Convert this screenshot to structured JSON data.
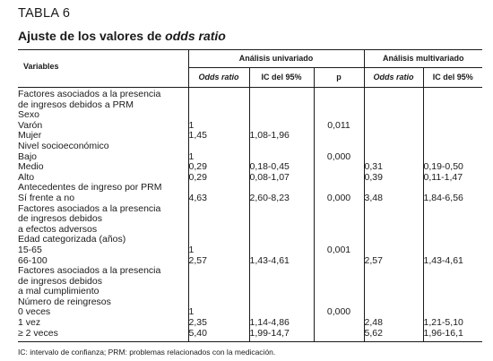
{
  "caption": "TABLA 6",
  "title_main": "Ajuste de los valores de ",
  "title_italic": "odds ratio",
  "header": {
    "univariate": "Análisis univariado",
    "multivariate": "Análisis multivariado",
    "variables": "Variables",
    "odds_ratio": "Odds ratio",
    "ic95": "IC del 95%",
    "p": "p",
    "odds_ratio_m": "Odds ratio",
    "ic95_m": "IC del 95%"
  },
  "rows": [
    {
      "label": "Factores asociados a la presencia",
      "level": 0,
      "or": "",
      "ic": "",
      "p": "",
      "or_m": "",
      "ic_m": ""
    },
    {
      "label": "de ingresos debidos a PRM",
      "level": 1,
      "or": "",
      "ic": "",
      "p": "",
      "or_m": "",
      "ic_m": ""
    },
    {
      "label": "Sexo",
      "level": 1,
      "or": "",
      "ic": "",
      "p": "",
      "or_m": "",
      "ic_m": ""
    },
    {
      "label": "Varón",
      "level": 2,
      "or": "1",
      "ic": "",
      "p": "0,011",
      "or_m": "",
      "ic_m": ""
    },
    {
      "label": "Mujer",
      "level": 2,
      "or": "1,45",
      "ic": "1,08-1,96",
      "p": "",
      "or_m": "",
      "ic_m": ""
    },
    {
      "label": "Nivel socioeconómico",
      "level": 1,
      "or": "",
      "ic": "",
      "p": "",
      "or_m": "",
      "ic_m": ""
    },
    {
      "label": "Bajo",
      "level": 2,
      "or": "1",
      "ic": "",
      "p": "0,000",
      "or_m": "",
      "ic_m": ""
    },
    {
      "label": "Medio",
      "level": 2,
      "or": "0,29",
      "ic": "0,18-0,45",
      "p": "",
      "or_m": "0,31",
      "ic_m": "0,19-0,50"
    },
    {
      "label": "Alto",
      "level": 2,
      "or": "0,29",
      "ic": "0,08-1,07",
      "p": "",
      "or_m": "0,39",
      "ic_m": "0,11-1,47"
    },
    {
      "label": "Antecedentes de ingreso por PRM",
      "level": 1,
      "or": "",
      "ic": "",
      "p": "",
      "or_m": "",
      "ic_m": ""
    },
    {
      "label": "Sí frente a no",
      "level": 1,
      "or": "4,63",
      "ic": "2,60-8,23",
      "p": "0,000",
      "or_m": "3,48",
      "ic_m": "1,84-6,56"
    },
    {
      "label": "Factores asociados a la presencia",
      "level": 0,
      "or": "",
      "ic": "",
      "p": "",
      "or_m": "",
      "ic_m": ""
    },
    {
      "label": "de ingresos debidos",
      "level": 1,
      "or": "",
      "ic": "",
      "p": "",
      "or_m": "",
      "ic_m": ""
    },
    {
      "label": "a efectos adversos",
      "level": 1,
      "or": "",
      "ic": "",
      "p": "",
      "or_m": "",
      "ic_m": ""
    },
    {
      "label": "Edad categorizada (años)",
      "level": 1,
      "or": "",
      "ic": "",
      "p": "",
      "or_m": "",
      "ic_m": ""
    },
    {
      "label": "15-65",
      "level": 2,
      "or": "1",
      "ic": "",
      "p": "0,001",
      "or_m": "",
      "ic_m": ""
    },
    {
      "label": "66-100",
      "level": 2,
      "or": "2,57",
      "ic": "1,43-4,61",
      "p": "",
      "or_m": "2,57",
      "ic_m": "1,43-4,61"
    },
    {
      "label": "Factores asociados a la presencia",
      "level": 0,
      "or": "",
      "ic": "",
      "p": "",
      "or_m": "",
      "ic_m": ""
    },
    {
      "label": "de ingresos debidos",
      "level": 1,
      "or": "",
      "ic": "",
      "p": "",
      "or_m": "",
      "ic_m": ""
    },
    {
      "label": "a mal cumplimiento",
      "level": 1,
      "or": "",
      "ic": "",
      "p": "",
      "or_m": "",
      "ic_m": ""
    },
    {
      "label": "Número de reingresos",
      "level": 1,
      "or": "",
      "ic": "",
      "p": "",
      "or_m": "",
      "ic_m": ""
    },
    {
      "label": "0 veces",
      "level": 2,
      "or": "1",
      "ic": "",
      "p": "0,000",
      "or_m": "",
      "ic_m": ""
    },
    {
      "label": "1 vez",
      "level": 2,
      "or": "2,35",
      "ic": "1,14-4,86",
      "p": "",
      "or_m": "2,48",
      "ic_m": "1,21-5,10"
    },
    {
      "label": "≥ 2 veces",
      "level": 2,
      "or": "5,40",
      "ic": "1,99-14,7",
      "p": "",
      "or_m": "5,62",
      "ic_m": "1,96-16,1"
    }
  ],
  "footnote": "IC: intervalo de confianza; PRM: problemas relacionados con la medicación."
}
